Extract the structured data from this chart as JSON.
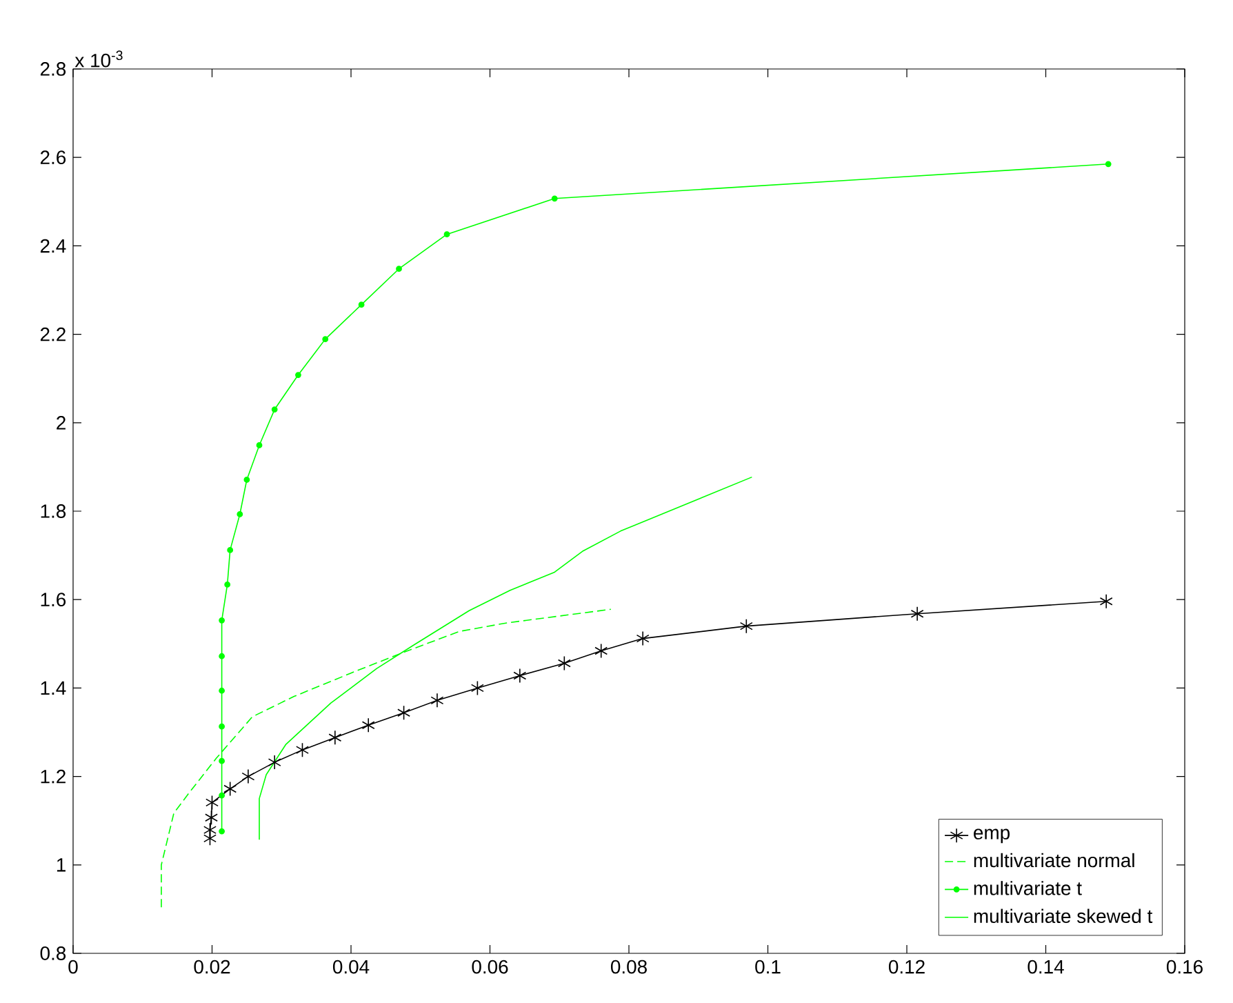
{
  "chart_data": {
    "type": "line",
    "annotations": [
      "x 10$^{-3}$"
    ],
    "xlim": [
      0,
      0.16
    ],
    "xticks": [
      0,
      0.02,
      0.04,
      0.06,
      0.08,
      0.1,
      0.12,
      0.14,
      0.16
    ],
    "ylim": [
      0.8,
      2.8
    ],
    "yticks": [
      0.8,
      1,
      1.2,
      1.4,
      1.6,
      1.8,
      2,
      2.2,
      2.4,
      2.6,
      2.8
    ],
    "grid": false,
    "legend": "bottom right",
    "series": [
      {
        "name": "emp",
        "color": "#000000",
        "marker": "cross",
        "line_style": "solid",
        "x": [
          0.0197,
          0.0197,
          0.0199,
          0.02,
          0.0226,
          0.0252,
          0.029,
          0.033,
          0.0377,
          0.0425,
          0.0476,
          0.0524,
          0.0582,
          0.0643,
          0.0707,
          0.076,
          0.082,
          0.0969,
          0.1215,
          0.1487
        ],
        "values": [
          1.06,
          1.079,
          1.107,
          1.141,
          1.172,
          1.2,
          1.232,
          1.26,
          1.288,
          1.316,
          1.344,
          1.372,
          1.4,
          1.428,
          1.456,
          1.484,
          1.512,
          1.54,
          1.568,
          1.596
        ]
      },
      {
        "name": "multivariate normal",
        "color": "#00ff00",
        "marker": "none",
        "line_style": "dashed",
        "x": [
          0.0127,
          0.0127,
          0.0145,
          0.0167,
          0.0206,
          0.0258,
          0.0318,
          0.0405,
          0.0476,
          0.0556,
          0.0623,
          0.0774
        ],
        "values": [
          0.904,
          1.0,
          1.117,
          1.163,
          1.241,
          1.335,
          1.381,
          1.437,
          1.481,
          1.528,
          1.547,
          1.578
        ]
      },
      {
        "name": "multivariate t",
        "color": "#00ff00",
        "marker": "circle",
        "line_style": "solid",
        "x": [
          0.0214,
          0.0214,
          0.0214,
          0.0214,
          0.0214,
          0.0214,
          0.0214,
          0.0222,
          0.0226,
          0.024,
          0.025,
          0.0268,
          0.029,
          0.0324,
          0.0363,
          0.0415,
          0.0469,
          0.0538,
          0.0693,
          0.149
        ],
        "values": [
          1.076,
          1.157,
          1.235,
          1.313,
          1.394,
          1.472,
          1.553,
          1.634,
          1.712,
          1.793,
          1.871,
          1.949,
          2.03,
          2.108,
          2.189,
          2.267,
          2.348,
          2.426,
          2.507,
          2.585
        ]
      },
      {
        "name": "multivariate skewed t",
        "color": "#00ff00",
        "marker": "none",
        "line_style": "solid",
        "x": [
          0.0268,
          0.0268,
          0.0278,
          0.0306,
          0.0371,
          0.0437,
          0.049,
          0.057,
          0.0629,
          0.0693,
          0.0733,
          0.0788,
          0.0977
        ],
        "values": [
          1.057,
          1.15,
          1.204,
          1.272,
          1.366,
          1.444,
          1.497,
          1.575,
          1.621,
          1.662,
          1.709,
          1.755,
          1.877
        ]
      }
    ]
  }
}
